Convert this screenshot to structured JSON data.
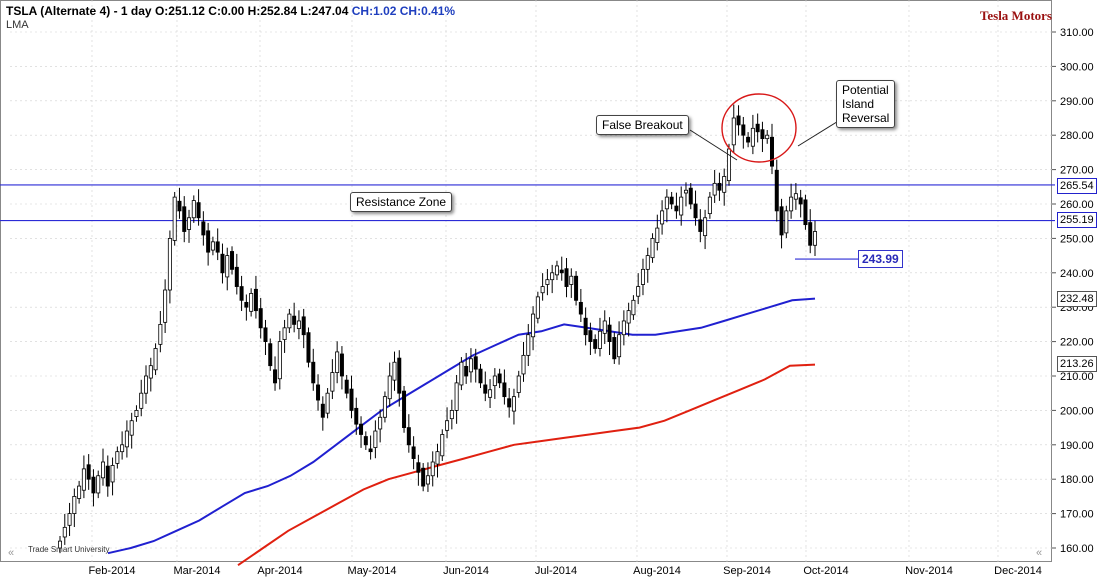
{
  "header": {
    "title": "TSLA (Alternate 4) - 1 day",
    "ohlc": "O:251.12 C:0.00 H:252.84 L:247.04",
    "change": "CH:1.02 CH:0.41%",
    "sub": "LMA"
  },
  "brand": "Tesla Motors",
  "watermark": "Trade Smart University",
  "annotations": {
    "resistance": "Resistance Zone",
    "false_breakout": "False Breakout",
    "island_1": "Potential",
    "island_2": "Island",
    "island_3": "Reversal",
    "level_243": "243.99"
  },
  "price_tags": {
    "r1": "265.54",
    "r2": "255.19",
    "ma1": "232.48",
    "ma2": "213.26"
  },
  "colors": {
    "resistance_line": "#2b2bd6",
    "ma_fast": "#2020d0",
    "ma_slow": "#e02010",
    "candle": "#000000",
    "circle": "#d81818",
    "grid": "#d0d0d0"
  },
  "chart_data": {
    "type": "candlestick",
    "symbol": "TSLA",
    "ylim": [
      157,
      316
    ],
    "yticks": [
      160,
      170,
      180,
      190,
      200,
      210,
      220,
      230,
      240,
      250,
      260,
      270,
      280,
      290,
      300,
      310
    ],
    "ytick_labels": [
      "160.00",
      "170.00",
      "180.00",
      "190.00",
      "200.00",
      "210.00",
      "220.00",
      "230.00",
      "240.00",
      "250.00",
      "260.00",
      "270.00",
      "280.00",
      "290.00",
      "300.00",
      "310.00"
    ],
    "months": [
      "Feb-2014",
      "Mar-2014",
      "Apr-2014",
      "May-2014",
      "Jun-2014",
      "Jul-2014",
      "Aug-2014",
      "Sep-2014",
      "Oct-2014",
      "Nov-2014",
      "Dec-2014"
    ],
    "resistance": [
      265.54,
      255.19
    ],
    "support_level": 243.99,
    "closes": [
      162,
      166,
      170,
      175,
      178,
      183,
      180,
      176,
      181,
      185,
      178,
      184,
      188,
      190,
      194,
      197,
      200,
      205,
      210,
      213,
      218,
      225,
      235,
      250,
      262,
      258,
      252,
      256,
      261,
      256,
      251,
      246,
      249,
      246,
      240,
      245,
      241,
      236,
      232,
      230,
      234,
      229,
      224,
      220,
      213,
      208,
      220,
      224,
      228,
      225,
      226,
      222,
      214,
      208,
      203,
      198,
      205,
      211,
      217,
      210,
      205,
      200,
      196,
      193,
      190,
      188,
      194,
      198,
      204,
      210,
      214,
      205,
      195,
      190,
      186,
      182,
      178,
      181,
      185,
      188,
      193,
      197,
      200,
      208,
      214,
      210,
      215,
      212,
      208,
      205,
      206,
      210,
      208,
      204,
      201,
      204,
      210,
      216,
      222,
      228,
      233,
      236,
      238,
      240,
      242,
      240,
      236,
      239,
      232,
      228,
      222,
      220,
      218,
      223,
      226,
      220,
      215,
      222,
      226,
      229,
      232,
      236,
      241,
      245,
      250,
      253,
      258,
      262,
      260,
      258,
      262,
      264,
      260,
      256,
      252,
      256,
      262,
      266,
      264,
      268,
      276,
      285,
      283,
      280,
      278,
      282,
      281,
      279,
      280,
      271,
      258,
      251,
      258,
      262,
      263,
      260,
      254,
      248,
      252
    ],
    "ma_fast": [
      158.5,
      160,
      162,
      165,
      168,
      172,
      176,
      178,
      181,
      185,
      190,
      195,
      200,
      204,
      208,
      212,
      216,
      219,
      222,
      223,
      225,
      224,
      223,
      222,
      222,
      223,
      224,
      226,
      228,
      230,
      232,
      232.5
    ],
    "ma_slow": [
      155,
      160,
      165,
      169,
      173,
      177,
      180,
      182,
      184,
      186,
      188,
      190,
      191,
      192,
      193,
      194,
      195,
      197,
      200,
      203,
      206,
      209,
      213,
      213.3
    ]
  }
}
